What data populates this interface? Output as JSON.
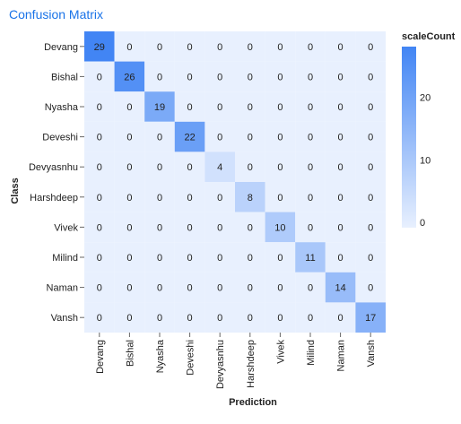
{
  "title": "Confusion Matrix",
  "chart_data": {
    "type": "heatmap",
    "title": "Confusion Matrix",
    "xlabel": "Prediction",
    "ylabel": "Class",
    "rows": [
      "Devang",
      "Bishal",
      "Nyasha",
      "Deveshi",
      "Devyasnhu",
      "Harshdeep",
      "Vivek",
      "Milind",
      "Naman",
      "Vansh"
    ],
    "columns": [
      "Devang",
      "Bishal",
      "Nyasha",
      "Deveshi",
      "Devyasnhu",
      "Harshdeep",
      "Vivek",
      "Milind",
      "Naman",
      "Vansh"
    ],
    "values": [
      [
        29,
        0,
        0,
        0,
        0,
        0,
        0,
        0,
        0,
        0
      ],
      [
        0,
        26,
        0,
        0,
        0,
        0,
        0,
        0,
        0,
        0
      ],
      [
        0,
        0,
        19,
        0,
        0,
        0,
        0,
        0,
        0,
        0
      ],
      [
        0,
        0,
        0,
        22,
        0,
        0,
        0,
        0,
        0,
        0
      ],
      [
        0,
        0,
        0,
        0,
        4,
        0,
        0,
        0,
        0,
        0
      ],
      [
        0,
        0,
        0,
        0,
        0,
        8,
        0,
        0,
        0,
        0
      ],
      [
        0,
        0,
        0,
        0,
        0,
        0,
        10,
        0,
        0,
        0
      ],
      [
        0,
        0,
        0,
        0,
        0,
        0,
        0,
        11,
        0,
        0
      ],
      [
        0,
        0,
        0,
        0,
        0,
        0,
        0,
        0,
        14,
        0
      ],
      [
        0,
        0,
        0,
        0,
        0,
        0,
        0,
        0,
        0,
        17
      ]
    ],
    "legend": {
      "title": "scaleCount",
      "ticks": [
        0,
        10,
        20
      ],
      "range": [
        0,
        29
      ],
      "placement": "right"
    },
    "colors": {
      "low": "#e8f0fe",
      "high": "#4285f4"
    }
  }
}
